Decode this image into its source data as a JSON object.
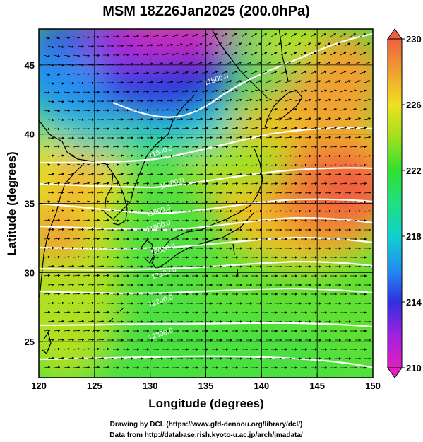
{
  "title": "MSM 18Z26Jan2025 (200.0hPa)",
  "xlabel": "Longitude (degrees)",
  "ylabel": "Latitude  (degrees)",
  "credits": {
    "line1": "Drawing by DCL (https://www.gfd-dennou.org/library/dcl/)",
    "line2": "Data from http://database.rish.kyoto-u.ac.jp/arch/jmadata/"
  },
  "map": {
    "lon_range": [
      120,
      150
    ],
    "lat_range": [
      22.4,
      47.6
    ],
    "lon_ticks": [
      120,
      125,
      130,
      135,
      140,
      145,
      150
    ],
    "lon_tick_labels": [
      "120",
      "125",
      "130",
      "135",
      "140",
      "145",
      "150"
    ],
    "lat_ticks": [
      25,
      30,
      35,
      40,
      45
    ],
    "lat_tick_labels": [
      "25",
      "30",
      "35",
      "40",
      "45"
    ],
    "field": "temperature (K) shaded, geopotential height contours, wind streamlines",
    "colorbar": {
      "min": 210,
      "max": 230,
      "tick_values": [
        210,
        214,
        218,
        222,
        226,
        230
      ],
      "tick_labels": [
        "210",
        "214",
        "218",
        "222",
        "226",
        "230"
      ],
      "colors": [
        "#e020c0",
        "#a020e0",
        "#3030e0",
        "#2090f0",
        "#10d0d0",
        "#20e080",
        "#30e030",
        "#a0e020",
        "#f0e020",
        "#f0a030",
        "#f06040"
      ]
    },
    "contour_labels": [
      {
        "text": "11500.0",
        "lon": 136.0,
        "lat": 43.8
      },
      {
        "text": "11600.0",
        "lon": 131.0,
        "lat": 38.6
      },
      {
        "text": "11700.0",
        "lon": 132.0,
        "lat": 36.3
      },
      {
        "text": "11800.0",
        "lon": 130.8,
        "lat": 34.3
      },
      {
        "text": "11900.0",
        "lon": 130.8,
        "lat": 33.2
      },
      {
        "text": "12000.0",
        "lon": 131.2,
        "lat": 31.5
      },
      {
        "text": "12100.0",
        "lon": 131.3,
        "lat": 29.8
      },
      {
        "text": "12200.0",
        "lon": 131.0,
        "lat": 27.8
      },
      {
        "text": "12300.0",
        "lon": 131.0,
        "lat": 25.4
      }
    ]
  }
}
